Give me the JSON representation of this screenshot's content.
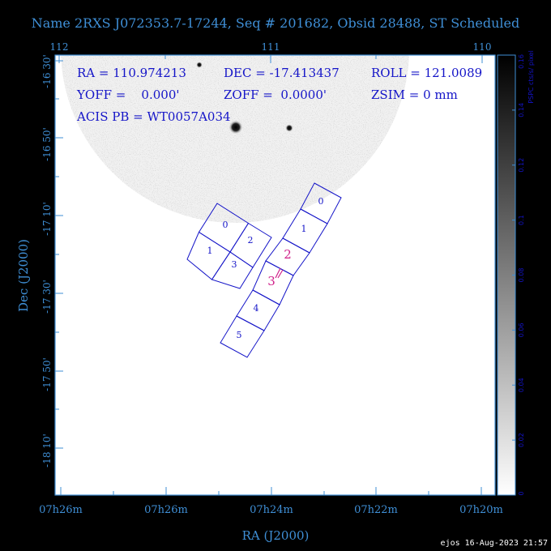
{
  "title": "Name 2RXS J072353.7-17244, Seq # 201682, Obsid 28488, ST Scheduled",
  "info": {
    "ra": "RA = 110.974213",
    "dec": "DEC = -17.413437",
    "roll": "ROLL = 121.0089",
    "yoff": "YOFF =    0.000'",
    "zoff": "ZOFF =  0.0000'",
    "zsim": "ZSIM = 0 mm",
    "acis": "ACIS PB = WT0057A034"
  },
  "axes": {
    "xlabel": "RA (J2000)",
    "ylabel": "Dec (J2000)",
    "top_ticks": [
      {
        "label": "112",
        "value": 112
      },
      {
        "label": "111",
        "value": 111
      },
      {
        "label": "110",
        "value": 110
      }
    ],
    "bottom_ticks": [
      {
        "label": "07h26m"
      },
      {
        "label": "07h26m"
      },
      {
        "label": "07h24m"
      },
      {
        "label": "07h22m"
      },
      {
        "label": "07h20m"
      }
    ],
    "left_ticks": [
      {
        "label": "-16 30'"
      },
      {
        "label": "-16 50'"
      },
      {
        "label": "-17 10'"
      },
      {
        "label": "-17 30'"
      },
      {
        "label": "-17 50'"
      },
      {
        "label": "-18 10'"
      }
    ]
  },
  "colorbar": {
    "label": "PSPC cts/s/ pixel",
    "min": 0,
    "max": 0.16,
    "ticks": [
      {
        "label": "0",
        "value": 0
      },
      {
        "label": "0.02",
        "value": 0.02
      },
      {
        "label": "0.04",
        "value": 0.04
      },
      {
        "label": "0.06",
        "value": 0.06
      },
      {
        "label": "0.08",
        "value": 0.08
      },
      {
        "label": "0.1",
        "value": 0.1
      },
      {
        "label": "0.12",
        "value": 0.12
      },
      {
        "label": "0.14",
        "value": 0.14
      },
      {
        "label": "0.16",
        "value": 0.16
      }
    ]
  },
  "chips": {
    "i_array": [
      "0",
      "2",
      "1",
      "3"
    ],
    "s_array": [
      "0",
      "1",
      "2",
      "3",
      "4",
      "5"
    ],
    "aimpoint_labels": [
      "2",
      "3"
    ]
  },
  "colors": {
    "axis": "#3f8fd6",
    "info_text": "#1414c8",
    "chip_outline": "#1414c8",
    "aimpoint": "#d0208a",
    "background": "#000000",
    "plot": "#ffffff"
  },
  "footer": "ejos 16-Aug-2023 21:57"
}
